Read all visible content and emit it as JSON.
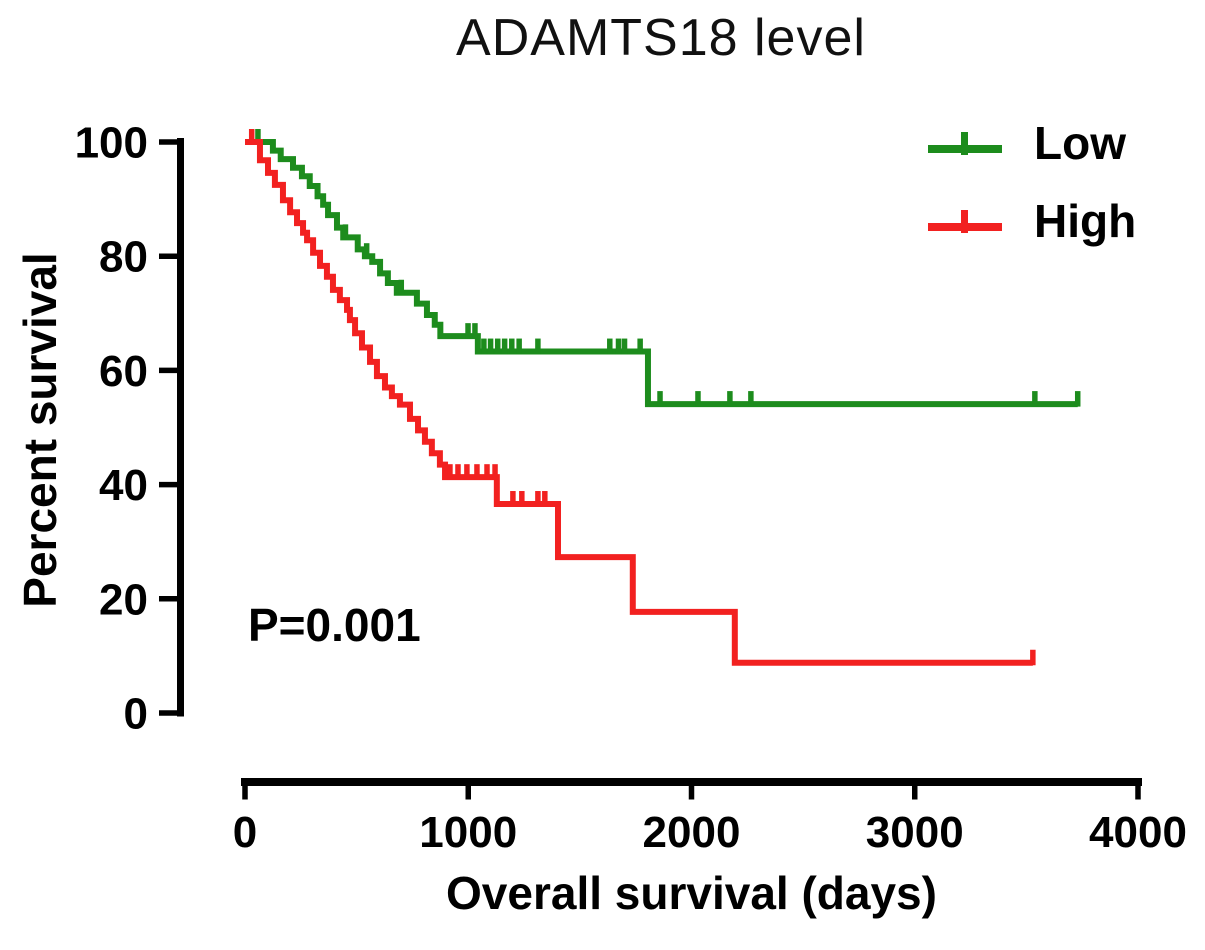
{
  "chart_data": {
    "type": "line",
    "subtype": "kaplan-meier-step",
    "title": "ADAMTS18 level",
    "xlabel": "Overall survival (days)",
    "ylabel": "Percent survival",
    "xlim": [
      0,
      4000
    ],
    "ylim": [
      0,
      100
    ],
    "xticks": [
      0,
      1000,
      2000,
      3000,
      4000
    ],
    "yticks": [
      0,
      20,
      40,
      60,
      80,
      100
    ],
    "grid": false,
    "legend_position": "top-right",
    "annotation": {
      "text": "P=0.001",
      "x_day": 15,
      "y_pct": 15
    },
    "axis_color": "#000000",
    "series": [
      {
        "name": "Low",
        "color": "#1d8c1d",
        "start": [
          0,
          100
        ],
        "end_time": 3730,
        "steps": [
          [
            125,
            98.5
          ],
          [
            160,
            97
          ],
          [
            215,
            95.5
          ],
          [
            255,
            94
          ],
          [
            290,
            92.3
          ],
          [
            325,
            90.5
          ],
          [
            350,
            89
          ],
          [
            372,
            87.2
          ],
          [
            412,
            85
          ],
          [
            440,
            83.3
          ],
          [
            505,
            81.2
          ],
          [
            537,
            80
          ],
          [
            570,
            79
          ],
          [
            605,
            77
          ],
          [
            640,
            75.3
          ],
          [
            680,
            73.6
          ],
          [
            770,
            71.7
          ],
          [
            815,
            69.7
          ],
          [
            850,
            68
          ],
          [
            875,
            66
          ],
          [
            1043,
            63.3
          ],
          [
            1805,
            54.1
          ]
        ],
        "censor_marks": [
          [
            58,
            100
          ],
          [
            450,
            83.3
          ],
          [
            545,
            80
          ],
          [
            700,
            73.6
          ],
          [
            999,
            66
          ],
          [
            1030,
            66
          ],
          [
            1070,
            63.3
          ],
          [
            1100,
            63.3
          ],
          [
            1132,
            63.3
          ],
          [
            1163,
            63.3
          ],
          [
            1195,
            63.3
          ],
          [
            1228,
            63.3
          ],
          [
            1312,
            63.3
          ],
          [
            1634,
            63.3
          ],
          [
            1673,
            63.3
          ],
          [
            1700,
            63.3
          ],
          [
            1770,
            63.3
          ],
          [
            1859,
            54.1
          ],
          [
            2029,
            54.1
          ],
          [
            2172,
            54.1
          ],
          [
            2266,
            54.1
          ],
          [
            3538,
            54.1
          ],
          [
            3730,
            54.1
          ]
        ]
      },
      {
        "name": "High",
        "color": "#f22120",
        "start": [
          0,
          100
        ],
        "end_time": 3529,
        "steps": [
          [
            67,
            96.8
          ],
          [
            103,
            94.6
          ],
          [
            134,
            92.5
          ],
          [
            170,
            89.8
          ],
          [
            202,
            87.7
          ],
          [
            233,
            85.8
          ],
          [
            260,
            84.1
          ],
          [
            278,
            82.8
          ],
          [
            305,
            80.6
          ],
          [
            336,
            78.3
          ],
          [
            367,
            76.4
          ],
          [
            394,
            74.1
          ],
          [
            425,
            72.3
          ],
          [
            457,
            70.6
          ],
          [
            470,
            68.8
          ],
          [
            493,
            66.5
          ],
          [
            524,
            64
          ],
          [
            560,
            61.5
          ],
          [
            591,
            59
          ],
          [
            627,
            57
          ],
          [
            658,
            55.5
          ],
          [
            694,
            54
          ],
          [
            739,
            51.5
          ],
          [
            775,
            49.5
          ],
          [
            806,
            47.5
          ],
          [
            837,
            45.5
          ],
          [
            873,
            43.5
          ],
          [
            896,
            41.3
          ],
          [
            1128,
            36.6
          ],
          [
            1402,
            27.3
          ],
          [
            1737,
            17.7
          ],
          [
            2194,
            8.8
          ]
        ],
        "censor_marks": [
          [
            30,
            100
          ],
          [
            918,
            41.3
          ],
          [
            954,
            41.3
          ],
          [
            994,
            41.3
          ],
          [
            1039,
            41.3
          ],
          [
            1084,
            41.3
          ],
          [
            1120,
            41.3
          ],
          [
            1200,
            36.6
          ],
          [
            1240,
            36.6
          ],
          [
            1312,
            36.6
          ],
          [
            1343,
            36.6
          ],
          [
            3529,
            8.8
          ]
        ]
      }
    ]
  }
}
